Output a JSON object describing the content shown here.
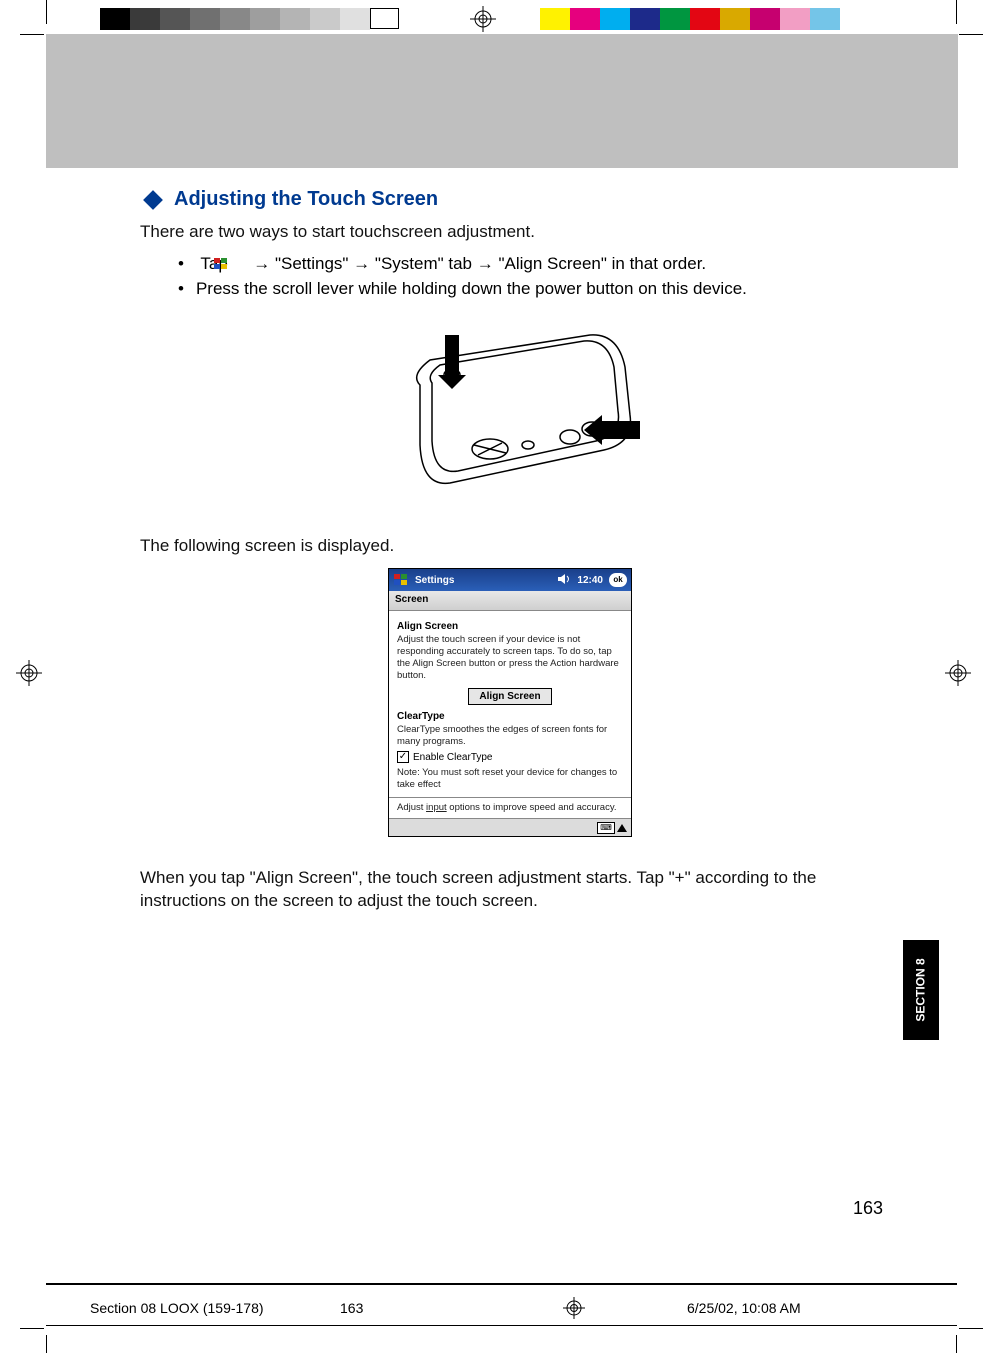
{
  "colors": {
    "accent": "#003a90",
    "hero_bg": "#bfbfbf",
    "pda_title_grad_top": "#1a3f8a",
    "pda_title_grad_bot": "#2a5fb8"
  },
  "swatches_grey": [
    "#000000",
    "#3a3a3a",
    "#555555",
    "#707070",
    "#888888",
    "#9e9e9e",
    "#b4b4b4",
    "#cacaca",
    "#e0e0e0",
    "#ffffff"
  ],
  "swatches_color": [
    "#fff200",
    "#e6007e",
    "#00aeef",
    "#1d2a8a",
    "#009640",
    "#e30613",
    "#d9a900",
    "#c6006f",
    "#f29ec4",
    "#74c5e8"
  ],
  "heading": "Adjusting the Touch Screen",
  "para_intro": "There are two ways to start touchscreen adjustment.",
  "bullets": {
    "b1_pre": "Tap ",
    "b1_post": " → \"Settings\" → \"System\" tab → \"Align Screen\" in that order.",
    "b2": "Press the scroll lever while holding down the power button on this device."
  },
  "para_following": "The following screen is displayed.",
  "para_conclusion": "When you tap \"Align Screen\", the touch screen adjustment starts. Tap \"+\" according to the instructions on the screen to adjust the touch screen.",
  "pda": {
    "title": "Settings",
    "time": "12:40",
    "ok": "ok",
    "screen_label": "Screen",
    "h_align": "Align Screen",
    "p_align": "Adjust the touch screen if your device is not responding accurately to screen taps. To do so, tap the Align Screen button or press the Action hardware button.",
    "btn_align": "Align Screen",
    "h_cleartype": "ClearType",
    "p_cleartype": "ClearType smoothes the edges of screen fonts for many programs.",
    "chk_label": "Enable ClearType",
    "p_note": "Note: You must soft reset your device for changes to take effect",
    "p_input_pre": "Adjust ",
    "p_input_link": "input",
    "p_input_post": " options to improve speed and accuracy."
  },
  "side_tab": "SECTION 8",
  "page_number": "163",
  "footer": {
    "file": "Section 08 LOOX (159-178)",
    "page": "163",
    "datetime": "6/25/02, 10:08 AM"
  }
}
